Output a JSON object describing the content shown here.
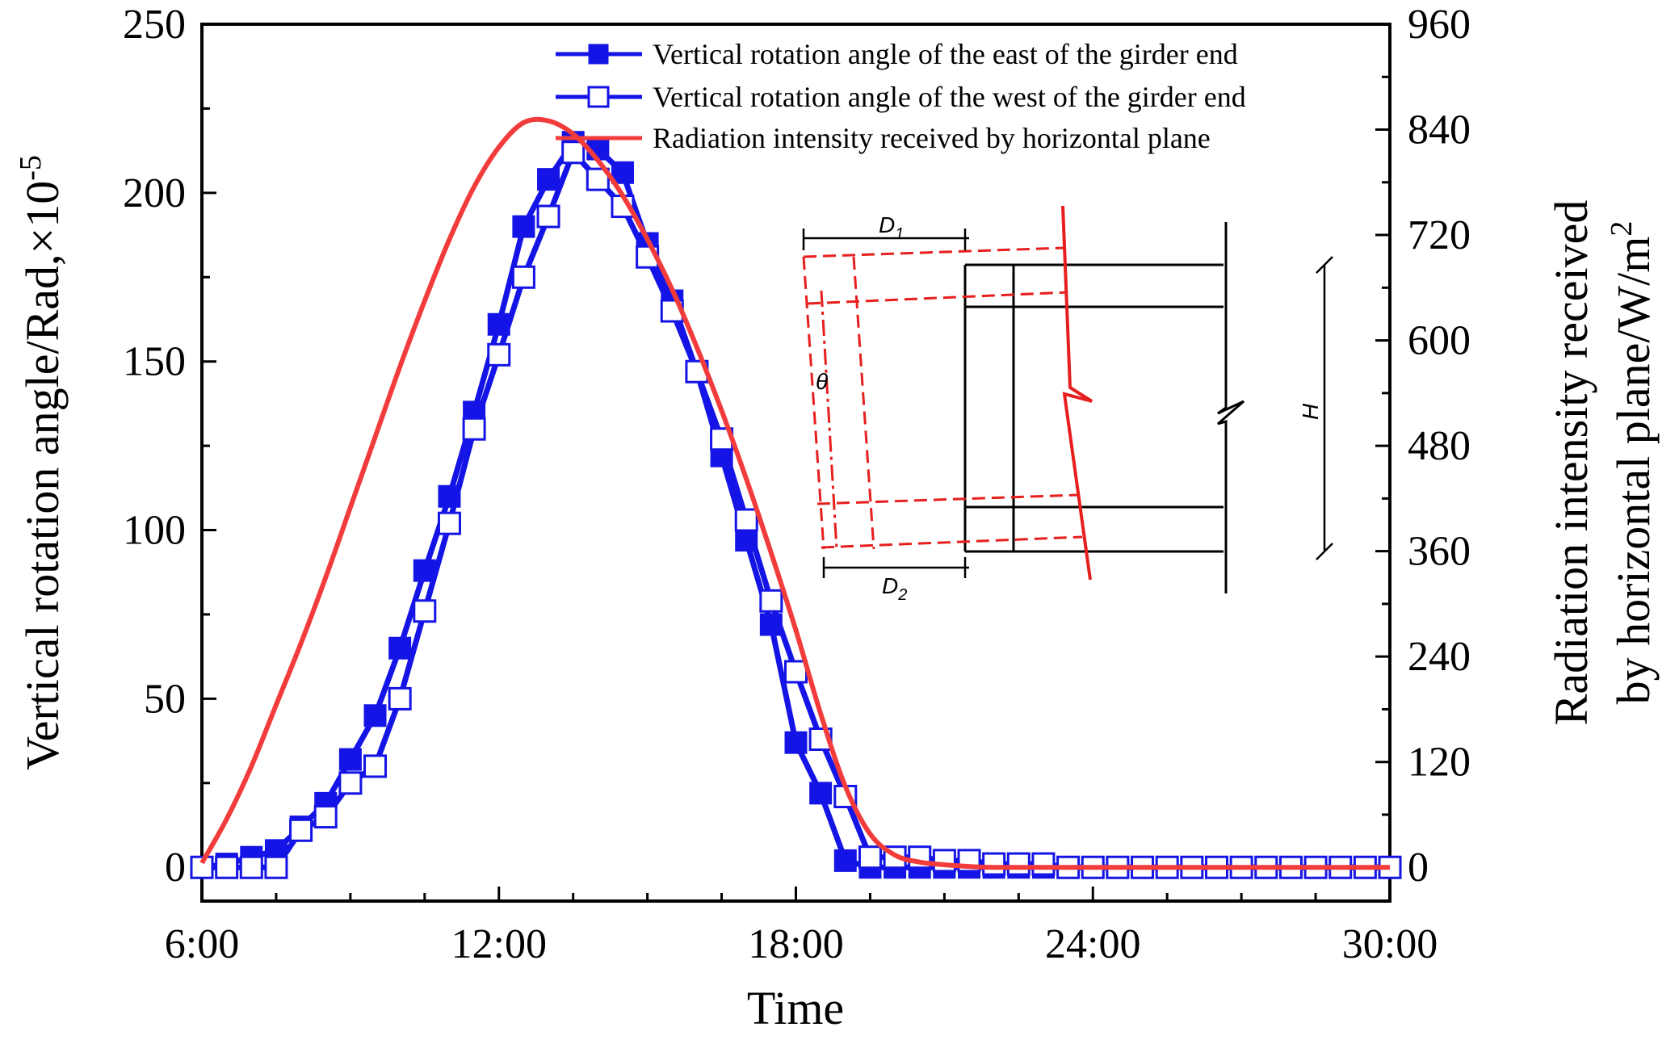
{
  "colors": {
    "east": "#1414e6",
    "west": "#1414e6",
    "radiation": "#f23c3c",
    "axis": "#000000",
    "inset_black": "#000000",
    "inset_red": "#e61e1e"
  },
  "chart_data": {
    "type": "line",
    "x_unit": "hours",
    "xlabel": "Time",
    "ylabel": "Vertical rotation angle/Rad,×10",
    "ylabel_exponent": "-5",
    "y2label_line1": "Radiation intensity received",
    "y2label_line2": "by horizontal plane/W/m",
    "y2label_exponent": "2",
    "xlim": [
      6,
      30
    ],
    "ylim": [
      -10,
      250
    ],
    "y2lim": [
      -38.4,
      960
    ],
    "x_ticks": [
      6,
      12,
      18,
      24,
      30
    ],
    "x_tick_labels": [
      "6:00",
      "12:00",
      "18:00",
      "24:00",
      "30:00"
    ],
    "y_ticks": [
      0,
      50,
      100,
      150,
      200,
      250
    ],
    "y_tick_labels": [
      "0",
      "50",
      "100",
      "150",
      "200",
      "250"
    ],
    "y2_ticks": [
      0,
      120,
      240,
      360,
      480,
      600,
      720,
      840,
      960
    ],
    "y2_tick_labels": [
      "0",
      "120",
      "240",
      "360",
      "480",
      "600",
      "720",
      "840",
      "960"
    ],
    "legend_position": "top-right",
    "series": [
      {
        "name": "Vertical rotation angle of the east of the girder end",
        "axis": "left",
        "marker": "filled-square",
        "x": [
          6,
          6.5,
          7,
          7.5,
          8,
          8.5,
          9,
          9.5,
          10,
          10.5,
          11,
          11.5,
          12,
          12.5,
          13,
          13.5,
          14,
          14.5,
          15,
          15.5,
          16,
          16.5,
          17,
          17.5,
          18,
          18.5,
          19,
          19.5,
          20,
          20.5,
          21,
          21.5,
          22,
          22.5,
          23,
          23.5,
          24,
          24.5,
          25,
          25.5,
          26,
          26.5,
          27,
          27.5,
          28,
          28.5,
          29,
          29.5,
          30
        ],
        "values": [
          0,
          1,
          3,
          5,
          12,
          19,
          32,
          45,
          65,
          88,
          110,
          135,
          161,
          190,
          204,
          215,
          213,
          206,
          185,
          168,
          147,
          122,
          97,
          72,
          37,
          22,
          2,
          0,
          0,
          0,
          0,
          0,
          0,
          0,
          0,
          0,
          0,
          0,
          0,
          0,
          0,
          0,
          0,
          0,
          0,
          0,
          0,
          0,
          0
        ]
      },
      {
        "name": "Vertical rotation angle of the west of the girder end",
        "axis": "left",
        "marker": "open-square",
        "x": [
          6,
          6.5,
          7,
          7.5,
          8,
          8.5,
          9,
          9.5,
          10,
          10.5,
          11,
          11.5,
          12,
          12.5,
          13,
          13.5,
          14,
          14.5,
          15,
          15.5,
          16,
          16.5,
          17,
          17.5,
          18,
          18.5,
          19,
          19.5,
          20,
          20.5,
          21,
          21.5,
          22,
          22.5,
          23,
          23.5,
          24,
          24.5,
          25,
          25.5,
          26,
          26.5,
          27,
          27.5,
          28,
          28.5,
          29,
          29.5,
          30
        ],
        "values": [
          0,
          0,
          0,
          0,
          11,
          15,
          25,
          30,
          50,
          76,
          102,
          130,
          152,
          175,
          193,
          212,
          204,
          196,
          181,
          165,
          147,
          127,
          103,
          79,
          58,
          38,
          21,
          3,
          3,
          3,
          2,
          2,
          1,
          1,
          1,
          0,
          0,
          0,
          0,
          0,
          0,
          0,
          0,
          0,
          0,
          0,
          0,
          0,
          0
        ]
      },
      {
        "name": "Radiation intensity received by horizontal plane",
        "axis": "right",
        "marker": "none",
        "x": [
          6,
          6.5,
          7,
          7.5,
          8,
          8.5,
          9,
          9.5,
          10,
          10.5,
          11,
          11.5,
          12,
          12.5,
          13,
          13.5,
          14,
          14.5,
          15,
          15.5,
          16,
          16.5,
          17,
          17.5,
          18,
          18.5,
          19,
          19.5,
          20,
          20.5,
          21,
          21.5,
          22,
          23,
          24,
          25,
          26,
          27,
          28,
          29,
          30
        ],
        "values": [
          5,
          55,
          115,
          185,
          255,
          330,
          410,
          490,
          570,
          645,
          715,
          775,
          820,
          848,
          850,
          835,
          805,
          765,
          715,
          658,
          592,
          520,
          442,
          358,
          270,
          175,
          92,
          38,
          14,
          6,
          3,
          1,
          0,
          0,
          0,
          0,
          0,
          0,
          0,
          0,
          0
        ]
      }
    ],
    "inset_diagram": {
      "labels": {
        "d1_main": "D",
        "d1_sub": "1",
        "d2_main": "D",
        "d2_sub": "2",
        "theta": "θ",
        "height": "H"
      }
    }
  }
}
